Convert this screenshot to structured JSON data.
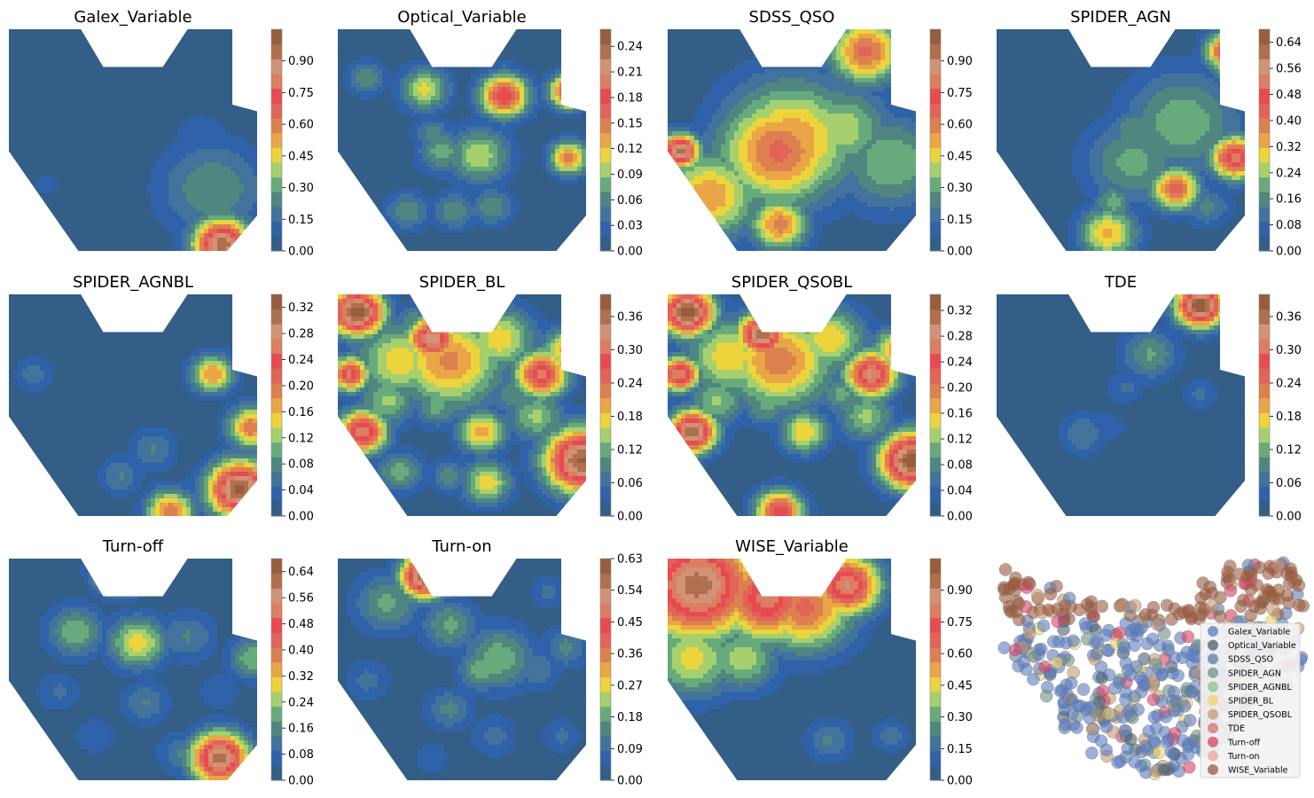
{
  "chart_data": [
    {
      "type": "heatmap",
      "title": "Galex_Variable",
      "zlim": [
        0,
        1.05
      ],
      "ticks": [
        "0.00",
        "0.15",
        "0.30",
        "0.45",
        "0.60",
        "0.75",
        "0.90"
      ],
      "hotspots": [
        [
          0.82,
          0.72,
          0.28,
          0.22
        ],
        [
          0.86,
          0.97,
          0.95,
          0.12
        ],
        [
          0.78,
          0.5,
          0.12,
          0.15
        ],
        [
          0.15,
          0.7,
          0.08,
          0.12
        ]
      ]
    },
    {
      "type": "heatmap",
      "title": "Optical_Variable",
      "zlim": [
        0,
        0.26
      ],
      "ticks": [
        "0.00",
        "0.03",
        "0.06",
        "0.09",
        "0.12",
        "0.15",
        "0.18",
        "0.21",
        "0.24"
      ],
      "hotspots": [
        [
          0.67,
          0.3,
          0.19,
          0.1
        ],
        [
          0.93,
          0.28,
          0.19,
          0.08
        ],
        [
          0.35,
          0.27,
          0.11,
          0.1
        ],
        [
          0.57,
          0.57,
          0.1,
          0.13
        ],
        [
          0.93,
          0.58,
          0.15,
          0.08
        ],
        [
          0.42,
          0.55,
          0.08,
          0.1
        ],
        [
          0.28,
          0.82,
          0.07,
          0.09
        ],
        [
          0.47,
          0.82,
          0.07,
          0.09
        ],
        [
          0.62,
          0.8,
          0.07,
          0.09
        ],
        [
          0.12,
          0.22,
          0.07,
          0.08
        ],
        [
          0.38,
          0.47,
          0.06,
          0.08
        ]
      ]
    },
    {
      "type": "heatmap",
      "title": "SDSS_QSO",
      "zlim": [
        0,
        1.05
      ],
      "ticks": [
        "0.00",
        "0.15",
        "0.30",
        "0.45",
        "0.60",
        "0.75",
        "0.90"
      ],
      "hotspots": [
        [
          0.45,
          0.55,
          0.65,
          0.25
        ],
        [
          0.17,
          0.75,
          0.55,
          0.2
        ],
        [
          0.8,
          0.1,
          0.65,
          0.15
        ],
        [
          0.5,
          0.5,
          0.55,
          0.28
        ],
        [
          0.9,
          0.6,
          0.35,
          0.22
        ],
        [
          0.7,
          0.45,
          0.4,
          0.2
        ],
        [
          0.45,
          0.88,
          0.6,
          0.12
        ],
        [
          0.05,
          0.55,
          0.95,
          0.08
        ]
      ]
    },
    {
      "type": "heatmap",
      "title": "SPIDER_AGN",
      "zlim": [
        0,
        0.68
      ],
      "ticks": [
        "0.00",
        "0.08",
        "0.16",
        "0.24",
        "0.32",
        "0.40",
        "0.48",
        "0.56",
        "0.64"
      ],
      "hotspots": [
        [
          0.96,
          0.58,
          0.52,
          0.1
        ],
        [
          0.72,
          0.72,
          0.44,
          0.1
        ],
        [
          0.45,
          0.92,
          0.33,
          0.12
        ],
        [
          0.75,
          0.42,
          0.22,
          0.24
        ],
        [
          0.55,
          0.6,
          0.2,
          0.2
        ],
        [
          0.93,
          0.1,
          0.48,
          0.09
        ],
        [
          0.93,
          0.16,
          0.3,
          0.07
        ],
        [
          0.55,
          0.45,
          0.18,
          0.1
        ],
        [
          0.85,
          0.8,
          0.15,
          0.1
        ],
        [
          0.47,
          0.78,
          0.21,
          0.08
        ]
      ]
    },
    {
      "type": "heatmap",
      "title": "SPIDER_AGNBL",
      "zlim": [
        0,
        0.34
      ],
      "ticks": [
        "0.00",
        "0.04",
        "0.08",
        "0.12",
        "0.16",
        "0.20",
        "0.24",
        "0.28",
        "0.32"
      ],
      "hotspots": [
        [
          0.93,
          0.88,
          0.33,
          0.13
        ],
        [
          0.98,
          0.6,
          0.2,
          0.1
        ],
        [
          0.82,
          0.36,
          0.18,
          0.09
        ],
        [
          0.45,
          0.82,
          0.07,
          0.09
        ],
        [
          0.1,
          0.36,
          0.06,
          0.08
        ],
        [
          0.65,
          0.98,
          0.2,
          0.1
        ],
        [
          0.58,
          0.7,
          0.07,
          0.1
        ]
      ]
    },
    {
      "type": "heatmap",
      "title": "SPIDER_BL",
      "zlim": [
        0,
        0.4
      ],
      "ticks": [
        "0.00",
        "0.06",
        "0.12",
        "0.18",
        "0.24",
        "0.30",
        "0.36"
      ],
      "hotspots": [
        [
          0.08,
          0.08,
          0.4,
          0.11
        ],
        [
          0.38,
          0.2,
          0.34,
          0.1
        ],
        [
          0.82,
          0.36,
          0.3,
          0.11
        ],
        [
          0.05,
          0.36,
          0.3,
          0.08
        ],
        [
          0.1,
          0.62,
          0.32,
          0.1
        ],
        [
          0.98,
          0.75,
          0.38,
          0.15
        ],
        [
          0.58,
          0.62,
          0.2,
          0.1
        ],
        [
          0.45,
          0.3,
          0.22,
          0.22
        ],
        [
          0.25,
          0.3,
          0.18,
          0.18
        ],
        [
          0.65,
          0.2,
          0.18,
          0.15
        ],
        [
          0.6,
          0.85,
          0.18,
          0.1
        ],
        [
          0.45,
          0.82,
          0.1,
          0.08
        ],
        [
          0.92,
          0.25,
          0.2,
          0.1
        ],
        [
          0.2,
          0.48,
          0.14,
          0.12
        ],
        [
          0.8,
          0.55,
          0.14,
          0.12
        ],
        [
          0.4,
          0.5,
          0.12,
          0.1
        ],
        [
          0.25,
          0.8,
          0.12,
          0.1
        ],
        [
          0.7,
          0.45,
          0.1,
          0.1
        ],
        [
          0.3,
          0.12,
          0.1,
          0.08
        ]
      ]
    },
    {
      "type": "heatmap",
      "title": "SPIDER_QSOBL",
      "zlim": [
        0,
        0.345
      ],
      "ticks": [
        "0.00",
        "0.04",
        "0.08",
        "0.12",
        "0.16",
        "0.20",
        "0.24",
        "0.28",
        "0.32"
      ],
      "hotspots": [
        [
          0.08,
          0.08,
          0.34,
          0.11
        ],
        [
          0.38,
          0.18,
          0.32,
          0.1
        ],
        [
          0.82,
          0.36,
          0.28,
          0.11
        ],
        [
          0.05,
          0.36,
          0.28,
          0.08
        ],
        [
          0.1,
          0.62,
          0.32,
          0.1
        ],
        [
          0.98,
          0.75,
          0.34,
          0.13
        ],
        [
          0.55,
          0.62,
          0.16,
          0.1
        ],
        [
          0.45,
          0.3,
          0.2,
          0.22
        ],
        [
          0.25,
          0.28,
          0.16,
          0.18
        ],
        [
          0.65,
          0.2,
          0.16,
          0.15
        ],
        [
          0.45,
          0.98,
          0.25,
          0.1
        ],
        [
          0.92,
          0.25,
          0.18,
          0.1
        ],
        [
          0.2,
          0.48,
          0.12,
          0.12
        ],
        [
          0.8,
          0.55,
          0.12,
          0.12
        ],
        [
          0.4,
          0.5,
          0.1,
          0.1
        ],
        [
          0.7,
          0.45,
          0.1,
          0.1
        ]
      ]
    },
    {
      "type": "heatmap",
      "title": "TDE",
      "zlim": [
        0,
        0.4
      ],
      "ticks": [
        "0.00",
        "0.06",
        "0.12",
        "0.18",
        "0.24",
        "0.30",
        "0.36"
      ],
      "hotspots": [
        [
          0.82,
          0.05,
          0.4,
          0.1
        ],
        [
          0.62,
          0.27,
          0.11,
          0.12
        ],
        [
          0.52,
          0.42,
          0.06,
          0.08
        ],
        [
          0.82,
          0.45,
          0.06,
          0.08
        ],
        [
          0.35,
          0.63,
          0.08,
          0.1
        ],
        [
          0.45,
          0.6,
          0.05,
          0.08
        ]
      ]
    },
    {
      "type": "heatmap",
      "title": "Turn-off",
      "zlim": [
        0,
        0.68
      ],
      "ticks": [
        "0.00",
        "0.08",
        "0.16",
        "0.24",
        "0.32",
        "0.40",
        "0.48",
        "0.56",
        "0.64"
      ],
      "hotspots": [
        [
          0.85,
          0.9,
          0.62,
          0.12
        ],
        [
          0.45,
          0.05,
          0.55,
          0.1
        ],
        [
          0.52,
          0.38,
          0.3,
          0.12
        ],
        [
          0.27,
          0.33,
          0.22,
          0.12
        ],
        [
          0.72,
          0.35,
          0.14,
          0.12
        ],
        [
          0.55,
          0.65,
          0.14,
          0.1
        ],
        [
          0.2,
          0.6,
          0.1,
          0.1
        ],
        [
          0.7,
          0.88,
          0.14,
          0.1
        ],
        [
          0.98,
          0.45,
          0.22,
          0.1
        ],
        [
          0.35,
          0.8,
          0.08,
          0.1
        ],
        [
          0.85,
          0.6,
          0.08,
          0.1
        ]
      ]
    },
    {
      "type": "heatmap",
      "title": "Turn-on",
      "zlim": [
        0,
        0.63
      ],
      "ticks": [
        "0.00",
        "0.09",
        "0.18",
        "0.27",
        "0.36",
        "0.45",
        "0.54",
        "0.63"
      ],
      "hotspots": [
        [
          0.35,
          0.08,
          0.6,
          0.1
        ],
        [
          0.2,
          0.2,
          0.18,
          0.14
        ],
        [
          0.65,
          0.45,
          0.2,
          0.15
        ],
        [
          0.58,
          0.5,
          0.2,
          0.1
        ],
        [
          0.45,
          0.3,
          0.18,
          0.12
        ],
        [
          0.8,
          0.5,
          0.12,
          0.1
        ],
        [
          0.45,
          0.68,
          0.14,
          0.1
        ],
        [
          0.92,
          0.4,
          0.14,
          0.1
        ],
        [
          0.85,
          0.15,
          0.1,
          0.08
        ],
        [
          0.38,
          0.9,
          0.08,
          0.08
        ],
        [
          0.63,
          0.8,
          0.1,
          0.1
        ],
        [
          0.9,
          0.8,
          0.1,
          0.08
        ],
        [
          0.12,
          0.55,
          0.1,
          0.1
        ]
      ]
    },
    {
      "type": "heatmap",
      "title": "WISE_Variable",
      "zlim": [
        0,
        1.05
      ],
      "ticks": [
        "0.00",
        "0.15",
        "0.30",
        "0.45",
        "0.60",
        "0.75",
        "0.90"
      ],
      "hotspots": [
        [
          0.12,
          0.12,
          0.95,
          0.25
        ],
        [
          0.4,
          0.18,
          0.8,
          0.2
        ],
        [
          0.55,
          0.22,
          0.65,
          0.2
        ],
        [
          0.1,
          0.45,
          0.45,
          0.18
        ],
        [
          0.3,
          0.45,
          0.4,
          0.15
        ],
        [
          0.72,
          0.12,
          0.85,
          0.14
        ],
        [
          0.65,
          0.82,
          0.22,
          0.1
        ],
        [
          0.9,
          0.8,
          0.18,
          0.08
        ]
      ]
    },
    {
      "type": "scatter",
      "title": "",
      "legend": [
        "Galex_Variable",
        "Optical_Variable",
        "SDSS_QSO",
        "SPIDER_AGN",
        "SPIDER_AGNBL",
        "SPIDER_BL",
        "SPIDER_QSOBL",
        "TDE",
        "Turn-off",
        "Turn-on",
        "WISE_Variable"
      ],
      "colors": [
        "#5a7bbf",
        "#4a6070",
        "#5a7bad",
        "#6d9086",
        "#8cc08c",
        "#ecd46a",
        "#c49870",
        "#d87070",
        "#d84060",
        "#e3a68c",
        "#9a5a3c"
      ]
    }
  ]
}
